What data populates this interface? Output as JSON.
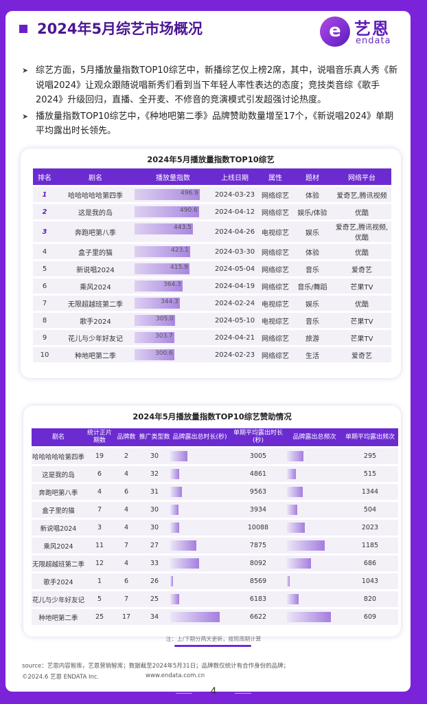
{
  "header": {
    "title": "2024年5月综艺市场概况",
    "logo_cn": "艺恩",
    "logo_en": "endata",
    "logo_badge": "e"
  },
  "bullets": [
    "综艺方面，5月播放量指数TOP10综艺中，新播综艺仅上榜2席，其中，说唱音乐真人秀《新说唱2024》让观众跟随说唱新秀们看到当下年轻人率性表达的态度；竞技类音综《歌手2024》升级回归，直播、全开麦、不修音的竞演模式引发超强讨论热度。",
    "播放量指数TOP10综艺中，《种地吧第二季》品牌赞助数量增至17个，《新说唱2024》单期平均露出时长领先。"
  ],
  "table1": {
    "title": "2024年5月播放量指数TOP10综艺",
    "headers": [
      "排名",
      "剧名",
      "播放量指数",
      "上线日期",
      "属性",
      "题材",
      "网络平台"
    ],
    "rows": [
      {
        "rank": "1",
        "name": "哈哈哈哈哈第四季",
        "index": 496.9,
        "date": "2024-03-23",
        "attr": "网络综艺",
        "genre": "体验",
        "platform": "爱奇艺,腾讯视频"
      },
      {
        "rank": "2",
        "name": "这是我的岛",
        "index": 490.6,
        "date": "2024-04-12",
        "attr": "网络综艺",
        "genre": "娱乐/体验",
        "platform": "优酷"
      },
      {
        "rank": "3",
        "name": "奔跑吧第八季",
        "index": 443.5,
        "date": "2024-04-26",
        "attr": "电视综艺",
        "genre": "娱乐",
        "platform": "爱奇艺,腾讯视频,优酷"
      },
      {
        "rank": "4",
        "name": "盒子里的猫",
        "index": 423.1,
        "date": "2024-03-30",
        "attr": "网络综艺",
        "genre": "体验",
        "platform": "优酷"
      },
      {
        "rank": "5",
        "name": "新说唱2024",
        "index": 415.9,
        "date": "2024-05-04",
        "attr": "网络综艺",
        "genre": "音乐",
        "platform": "爱奇艺"
      },
      {
        "rank": "6",
        "name": "乘风2024",
        "index": 364.3,
        "date": "2024-04-19",
        "attr": "网络综艺",
        "genre": "音乐/舞蹈",
        "platform": "芒果TV"
      },
      {
        "rank": "7",
        "name": "无限超越班第二季",
        "index": 344.3,
        "date": "2024-02-24",
        "attr": "电视综艺",
        "genre": "娱乐",
        "platform": "优酷"
      },
      {
        "rank": "8",
        "name": "歌手2024",
        "index": 305.0,
        "date": "2024-05-10",
        "attr": "电视综艺",
        "genre": "音乐",
        "platform": "芒果TV"
      },
      {
        "rank": "9",
        "name": "花儿与少年好友记",
        "index": 303.7,
        "date": "2024-04-21",
        "attr": "网络综艺",
        "genre": "旅游",
        "platform": "芒果TV"
      },
      {
        "rank": "10",
        "name": "种地吧第二季",
        "index": 300.6,
        "date": "2024-02-23",
        "attr": "网络综艺",
        "genre": "生活",
        "platform": "爱奇艺"
      }
    ]
  },
  "table2": {
    "title": "2024年5月播放量指数TOP10综艺赞助情况",
    "headers": [
      "剧名",
      "统计正片期数",
      "品牌数",
      "推广类型数",
      "品牌露出总时长(秒)",
      "单期平均露出时长(秒)",
      "品牌露出总频次",
      "单期平均露出频次"
    ],
    "rows": [
      {
        "name": "哈哈哈哈哈第四季",
        "episodes": 19,
        "brands": 2,
        "types": 30,
        "total_dur": 57095,
        "avg_dur": 3005,
        "total_freq": 5605,
        "avg_freq": 295
      },
      {
        "name": "这是我的岛",
        "episodes": 6,
        "brands": 4,
        "types": 32,
        "total_dur": 29166,
        "avg_dur": 4861,
        "total_freq": 3090,
        "avg_freq": 515
      },
      {
        "name": "奔跑吧第八季",
        "episodes": 4,
        "brands": 6,
        "types": 31,
        "total_dur": 38252,
        "avg_dur": 9563,
        "total_freq": 5376,
        "avg_freq": 1344
      },
      {
        "name": "盒子里的猫",
        "episodes": 7,
        "brands": 4,
        "types": 30,
        "total_dur": 27538,
        "avg_dur": 3934,
        "total_freq": 3528,
        "avg_freq": 504
      },
      {
        "name": "新说唱2024",
        "episodes": 3,
        "brands": 4,
        "types": 30,
        "total_dur": 30264,
        "avg_dur": 10088,
        "total_freq": 6069,
        "avg_freq": 2023
      },
      {
        "name": "乘风2024",
        "episodes": 11,
        "brands": 7,
        "types": 27,
        "total_dur": 86625,
        "avg_dur": 7875,
        "total_freq": 13035,
        "avg_freq": 1185
      },
      {
        "name": "无限超越班第二季",
        "episodes": 12,
        "brands": 4,
        "types": 33,
        "total_dur": 97104,
        "avg_dur": 8092,
        "total_freq": 8232,
        "avg_freq": 686
      },
      {
        "name": "歌手2024",
        "episodes": 1,
        "brands": 6,
        "types": 26,
        "total_dur": 8569,
        "avg_dur": 8569,
        "total_freq": 1043,
        "avg_freq": 1043
      },
      {
        "name": "花儿与少年好友记",
        "episodes": 5,
        "brands": 7,
        "types": 25,
        "total_dur": 30915,
        "avg_dur": 6183,
        "total_freq": 4100,
        "avg_freq": 820
      },
      {
        "name": "种地吧第二季",
        "episodes": 25,
        "brands": 17,
        "types": 34,
        "total_dur": 165550,
        "avg_dur": 6622,
        "total_freq": 15225,
        "avg_freq": 609
      }
    ]
  },
  "note": "注：上/下期分两天更新，按照周期计算",
  "source": "source：艺恩内容智库，艺恩营销智库；数据截至2024年5月31日；品牌数仅统计有合作身份的品牌；",
  "copyright": "©2024.6 艺恩 ENDATA Inc.",
  "website": "www.endata.com.cn",
  "page_number": "4",
  "colors": {
    "accent": "#6b2bd1",
    "background": "#7a23d8",
    "bar": "#a986e0"
  }
}
